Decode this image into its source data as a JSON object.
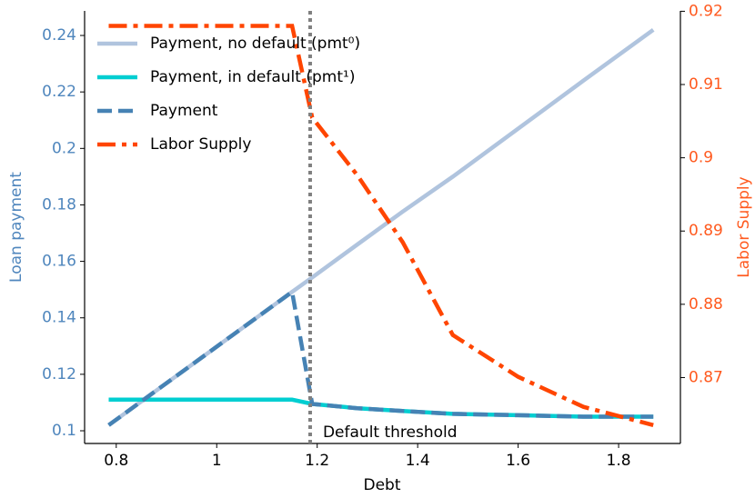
{
  "chart_data": {
    "type": "line",
    "x_label": "Debt",
    "y_label": "Loan payment",
    "y2_label": "Labor Supply",
    "y_color": "#4f86bd",
    "y2_color": "#ff5a1f",
    "x": [
      0.785,
      1.15,
      1.19,
      1.28,
      1.37,
      1.47,
      1.6,
      1.73,
      1.869
    ],
    "xlim": [
      0.737,
      1.923
    ],
    "xticks": [
      0.8,
      1.0,
      1.2,
      1.4,
      1.6,
      1.8
    ],
    "ylim": [
      0.0955,
      0.2487
    ],
    "yticks": [
      0.1,
      0.12,
      0.14,
      0.16,
      0.18,
      0.2,
      0.22,
      0.24
    ],
    "y2lim": [
      0.861,
      0.92005
    ],
    "y2ticks": [
      0.87,
      0.88,
      0.89,
      0.9,
      0.91,
      0.92
    ],
    "legend": "upper left",
    "threshold": {
      "x": 1.186,
      "label": "Default threshold",
      "color": "#808080"
    },
    "series": [
      {
        "name": "Payment, no default (pmt⁰)",
        "color": "#b0c4de",
        "style": "solid",
        "values": [
          0.102,
          0.1492,
          0.1543,
          0.166,
          0.1776,
          0.19,
          0.207,
          0.224,
          0.242
        ]
      },
      {
        "name": "Payment, in default (pmt¹)",
        "color": "#00ced1",
        "style": "solid",
        "values": [
          0.111,
          0.111,
          0.1095,
          0.108,
          0.107,
          0.106,
          0.1055,
          0.105,
          0.105
        ]
      },
      {
        "name": "Payment",
        "color": "#4682b4",
        "style": "dashed",
        "values": [
          0.102,
          0.1492,
          0.1095,
          0.108,
          0.107,
          0.106,
          0.1055,
          0.105,
          0.105
        ]
      },
      {
        "name": "Labor Supply",
        "color": "#ff4500",
        "style": "dashdot",
        "axis": "y2",
        "values": [
          0.918,
          0.918,
          0.9055,
          0.8976,
          0.8885,
          0.8758,
          0.8701,
          0.866,
          0.8635
        ]
      }
    ]
  }
}
